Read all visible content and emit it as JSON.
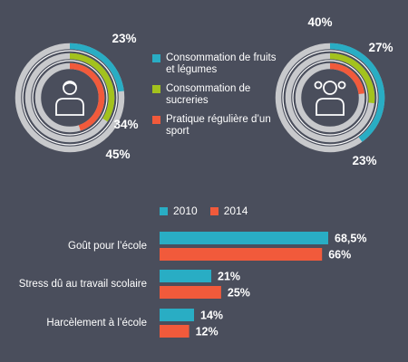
{
  "colors": {
    "background": "#4a4e5c",
    "teal": "#29adc4",
    "green": "#a3c21d",
    "red": "#f15a3b",
    "track": "#c8c9cc",
    "text": "#ffffff"
  },
  "legend_top": [
    {
      "label": "Consommation de fruits et légumes",
      "color": "#29adc4"
    },
    {
      "label": "Consommation de sucreries",
      "color": "#a3c21d"
    },
    {
      "label": "Pratique régulière d’un sport",
      "color": "#f15a3b"
    }
  ],
  "chart_data": [
    {
      "type": "radial-bar",
      "icon": "boy-icon",
      "series": [
        {
          "name": "Consommation de fruits et légumes",
          "value": 23,
          "label": "23%",
          "color": "#29adc4"
        },
        {
          "name": "Consommation de sucreries",
          "value": 34,
          "label": "34%",
          "color": "#a3c21d"
        },
        {
          "name": "Pratique régulière d’un sport",
          "value": 45,
          "label": "45%",
          "color": "#f15a3b"
        }
      ]
    },
    {
      "type": "radial-bar",
      "icon": "girl-icon",
      "series": [
        {
          "name": "Consommation de fruits et légumes",
          "value": 40,
          "label": "40%",
          "color": "#29adc4"
        },
        {
          "name": "Consommation de sucreries",
          "value": 27,
          "label": "27%",
          "color": "#a3c21d"
        },
        {
          "name": "Pratique régulière d’un sport",
          "value": 23,
          "label": "23%",
          "color": "#f15a3b"
        }
      ]
    },
    {
      "type": "bar",
      "orientation": "horizontal",
      "categories": [
        "Goût pour l’école",
        "Stress dû au travail scolaire",
        "Harcèlement à l’école"
      ],
      "series": [
        {
          "name": "2010",
          "color": "#29adc4",
          "values": [
            68.5,
            21,
            14
          ],
          "labels": [
            "68,5%",
            "21%",
            "14%"
          ]
        },
        {
          "name": "2014",
          "color": "#f15a3b",
          "values": [
            66,
            25,
            12
          ],
          "labels": [
            "66%",
            "25%",
            "12%"
          ]
        }
      ]
    }
  ]
}
